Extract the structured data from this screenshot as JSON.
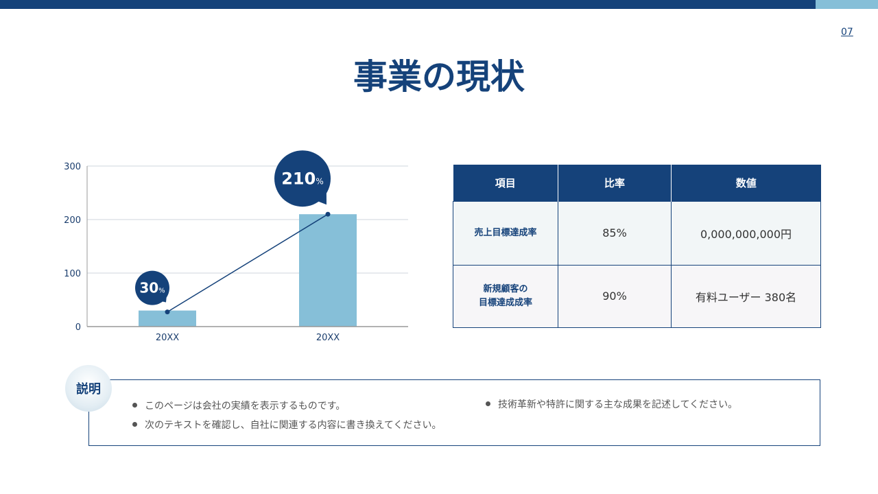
{
  "page_number": "07",
  "title": "事業の現状",
  "colors": {
    "primary": "#15427a",
    "bar": "#86bfd8",
    "accent": "#86bfd8"
  },
  "chart_data": {
    "type": "bar",
    "categories": [
      "20XX",
      "20XX"
    ],
    "values": [
      30,
      210
    ],
    "line_overlay": [
      30,
      210
    ],
    "data_labels": [
      {
        "value": "30",
        "unit": "%"
      },
      {
        "value": "210",
        "unit": "%"
      }
    ],
    "ylim": [
      0,
      300
    ],
    "yticks": [
      "0",
      "100",
      "200",
      "300"
    ],
    "grid": true,
    "legend": "none"
  },
  "table": {
    "headers": [
      "項目",
      "比率",
      "数値"
    ],
    "rows": [
      {
        "label": "売上目標達成率",
        "ratio": "85%",
        "value": "0,000,000,000円"
      },
      {
        "label_line1": "新規顧客の",
        "label_line2": "目標達成成率",
        "ratio": "90%",
        "value": "有料ユーザー 380名"
      }
    ]
  },
  "notes": {
    "badge": "説明",
    "items": [
      "このページは会社の実績を表示するものです。",
      "次のテキストを確認し、自社に関連する内容に書き換えてください。",
      "技術革新や特許に関する主な成果を記述してください。"
    ]
  }
}
